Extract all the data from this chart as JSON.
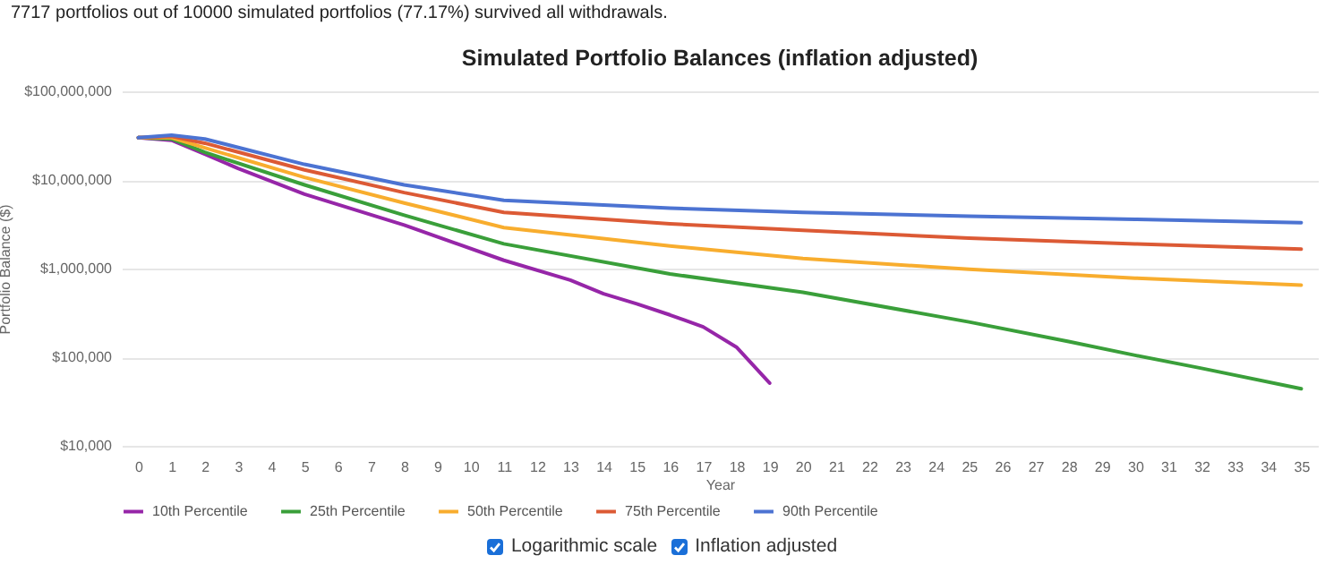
{
  "chart_data": {
    "type": "line",
    "title": "Simulated Portfolio Balances (inflation adjusted)",
    "xlabel": "Year",
    "ylabel": "Portfolio Balance ($)",
    "annotations": [
      "7717 portfolios out of 10000 simulated portfolios (77.17%) survived all withdrawals.",
      "Logarithmic scale",
      "Inflation adjusted"
    ],
    "log": true,
    "grid": "y",
    "legend": "bottom",
    "marker": "none",
    "line_style": "solid",
    "xlim": [
      -0.5,
      35.5
    ],
    "xticks": [
      0,
      1,
      2,
      3,
      4,
      5,
      6,
      7,
      8,
      9,
      10,
      11,
      12,
      13,
      14,
      15,
      16,
      17,
      18,
      19,
      20,
      21,
      22,
      23,
      24,
      25,
      26,
      27,
      28,
      29,
      30,
      31,
      32,
      33,
      34,
      35
    ],
    "ylim": [
      10000,
      100000000
    ],
    "yticks": [
      {
        "value": 10000,
        "label": "$10,000"
      },
      {
        "value": 100000,
        "label": "$100,000"
      },
      {
        "value": 1000000,
        "label": "$1,000,000"
      },
      {
        "value": 10000000,
        "label": "$10,000,000"
      },
      {
        "value": 100000000,
        "label": "$100,000,000"
      }
    ],
    "series": [
      {
        "name": "10th Percentile",
        "color": "#9626a8",
        "x": [
          0,
          1,
          2,
          3,
          5,
          8,
          11,
          13,
          14,
          15,
          16,
          17,
          18,
          19
        ],
        "values": [
          30000000,
          28000000,
          19600000,
          13500000,
          6900000,
          3100000,
          1240000,
          740000,
          520000,
          400000,
          300000,
          220000,
          130000,
          51000
        ]
      },
      {
        "name": "25th Percentile",
        "color": "#3a9f3a",
        "x": [
          0,
          1,
          2,
          5,
          8,
          11,
          16,
          20,
          25,
          28,
          30,
          32,
          35
        ],
        "values": [
          30000000,
          29000000,
          20500000,
          8800000,
          4000000,
          1900000,
          870000,
          540000,
          250000,
          150000,
          105000,
          75000,
          44000
        ]
      },
      {
        "name": "50th Percentile",
        "color": "#f8ad2e",
        "x": [
          0,
          1,
          2,
          5,
          8,
          11,
          16,
          20,
          25,
          30,
          35
        ],
        "values": [
          30000000,
          30000000,
          23000000,
          10700000,
          5500000,
          2900000,
          1800000,
          1300000,
          980000,
          780000,
          650000
        ]
      },
      {
        "name": "75th Percentile",
        "color": "#dc5a35",
        "x": [
          0,
          1,
          2,
          5,
          8,
          11,
          16,
          20,
          25,
          30,
          35
        ],
        "values": [
          30000000,
          31000000,
          26000000,
          13000000,
          7200000,
          4300000,
          3200000,
          2700000,
          2200000,
          1900000,
          1660000
        ]
      },
      {
        "name": "90th Percentile",
        "color": "#4c73d2",
        "x": [
          0,
          1,
          2,
          5,
          8,
          11,
          16,
          20,
          25,
          30,
          35
        ],
        "values": [
          30000000,
          32000000,
          29000000,
          15000000,
          8800000,
          5900000,
          4800000,
          4300000,
          3900000,
          3600000,
          3300000
        ]
      }
    ]
  }
}
